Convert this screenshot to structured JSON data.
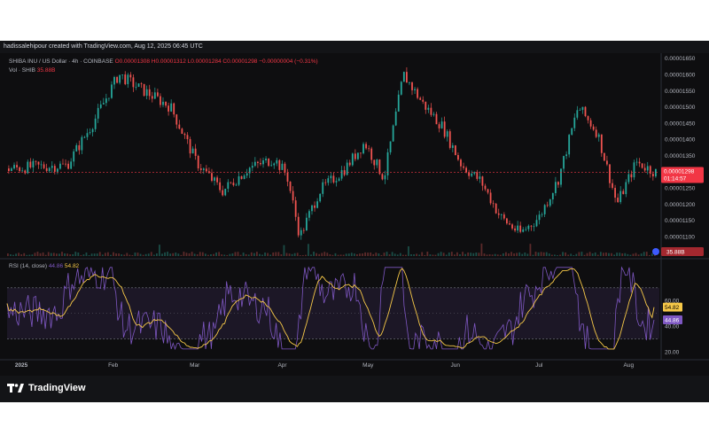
{
  "header": {
    "text": "hadissalehipour created with TradingView.com, Aug 12, 2025 06:45 UTC"
  },
  "legend": {
    "symbol": "SHIBA INU / US Dollar · 4h · COINBASE",
    "ohlc": "O0.00001308 H0.00001312 L0.00001284 C0.00001298 −0.00000004 (−0.31%)",
    "vol_label": "Vol · SHIB",
    "vol_value": "35.88B"
  },
  "rsi_legend": {
    "label": "RSI (14, close)",
    "rsi_value": "44.86",
    "ma_value": "54.82"
  },
  "footer": {
    "brand": "TradingView"
  },
  "colors": {
    "up": "#26a69a",
    "down": "#ef5350",
    "rsi": "#7e57c2",
    "rsi_ma": "#f7c948",
    "price_tag": "#f23645"
  },
  "chart_data": [
    {
      "type": "candlestick",
      "title": "SHIBA INU / US Dollar · 4h · COINBASE",
      "y_ticks": [
        "0.00001650",
        "0.00001600",
        "0.00001550",
        "0.00001500",
        "0.00001450",
        "0.00001400",
        "0.00001350",
        "0.00001300",
        "0.00001250",
        "0.00001200",
        "0.00001150",
        "0.00001100",
        "0.00001050"
      ],
      "ylim": [
        1.04e-05,
        1.66e-05
      ],
      "x_ticks": [
        "2025",
        "Feb",
        "Mar",
        "Apr",
        "May",
        "Jun",
        "Jul",
        "Aug"
      ],
      "current_price": "0.00001298",
      "countdown": "01:14:57",
      "volume_tag": "35.88B",
      "close_path": [
        [
          0.0,
          1.31e-05
        ],
        [
          0.04,
          1.315e-05
        ],
        [
          0.09,
          1.32e-05
        ],
        [
          0.13,
          1.45e-05
        ],
        [
          0.17,
          1.6e-05
        ],
        [
          0.2,
          1.56e-05
        ],
        [
          0.25,
          1.5e-05
        ],
        [
          0.29,
          1.33e-05
        ],
        [
          0.33,
          1.24e-05
        ],
        [
          0.37,
          1.31e-05
        ],
        [
          0.41,
          1.34e-05
        ],
        [
          0.43,
          1.29e-05
        ],
        [
          0.45,
          1.1e-05
        ],
        [
          0.48,
          1.24e-05
        ],
        [
          0.52,
          1.31e-05
        ],
        [
          0.55,
          1.39e-05
        ],
        [
          0.58,
          1.28e-05
        ],
        [
          0.61,
          1.6e-05
        ],
        [
          0.64,
          1.51e-05
        ],
        [
          0.67,
          1.44e-05
        ],
        [
          0.7,
          1.32e-05
        ],
        [
          0.73,
          1.27e-05
        ],
        [
          0.76,
          1.16e-05
        ],
        [
          0.79,
          1.11e-05
        ],
        [
          0.82,
          1.16e-05
        ],
        [
          0.85,
          1.28e-05
        ],
        [
          0.88,
          1.5e-05
        ],
        [
          0.91,
          1.42e-05
        ],
        [
          0.94,
          1.2e-05
        ],
        [
          0.97,
          1.33e-05
        ],
        [
          1.0,
          1.298e-05
        ]
      ]
    },
    {
      "type": "line",
      "title": "RSI (14, close)",
      "y_ticks": [
        "60.00",
        "40.00",
        "20.00"
      ],
      "ylim": [
        15,
        90
      ],
      "bands": [
        30,
        70
      ],
      "series": [
        {
          "name": "RSI",
          "last": 44.86
        },
        {
          "name": "MA",
          "last": 54.82
        }
      ]
    }
  ]
}
